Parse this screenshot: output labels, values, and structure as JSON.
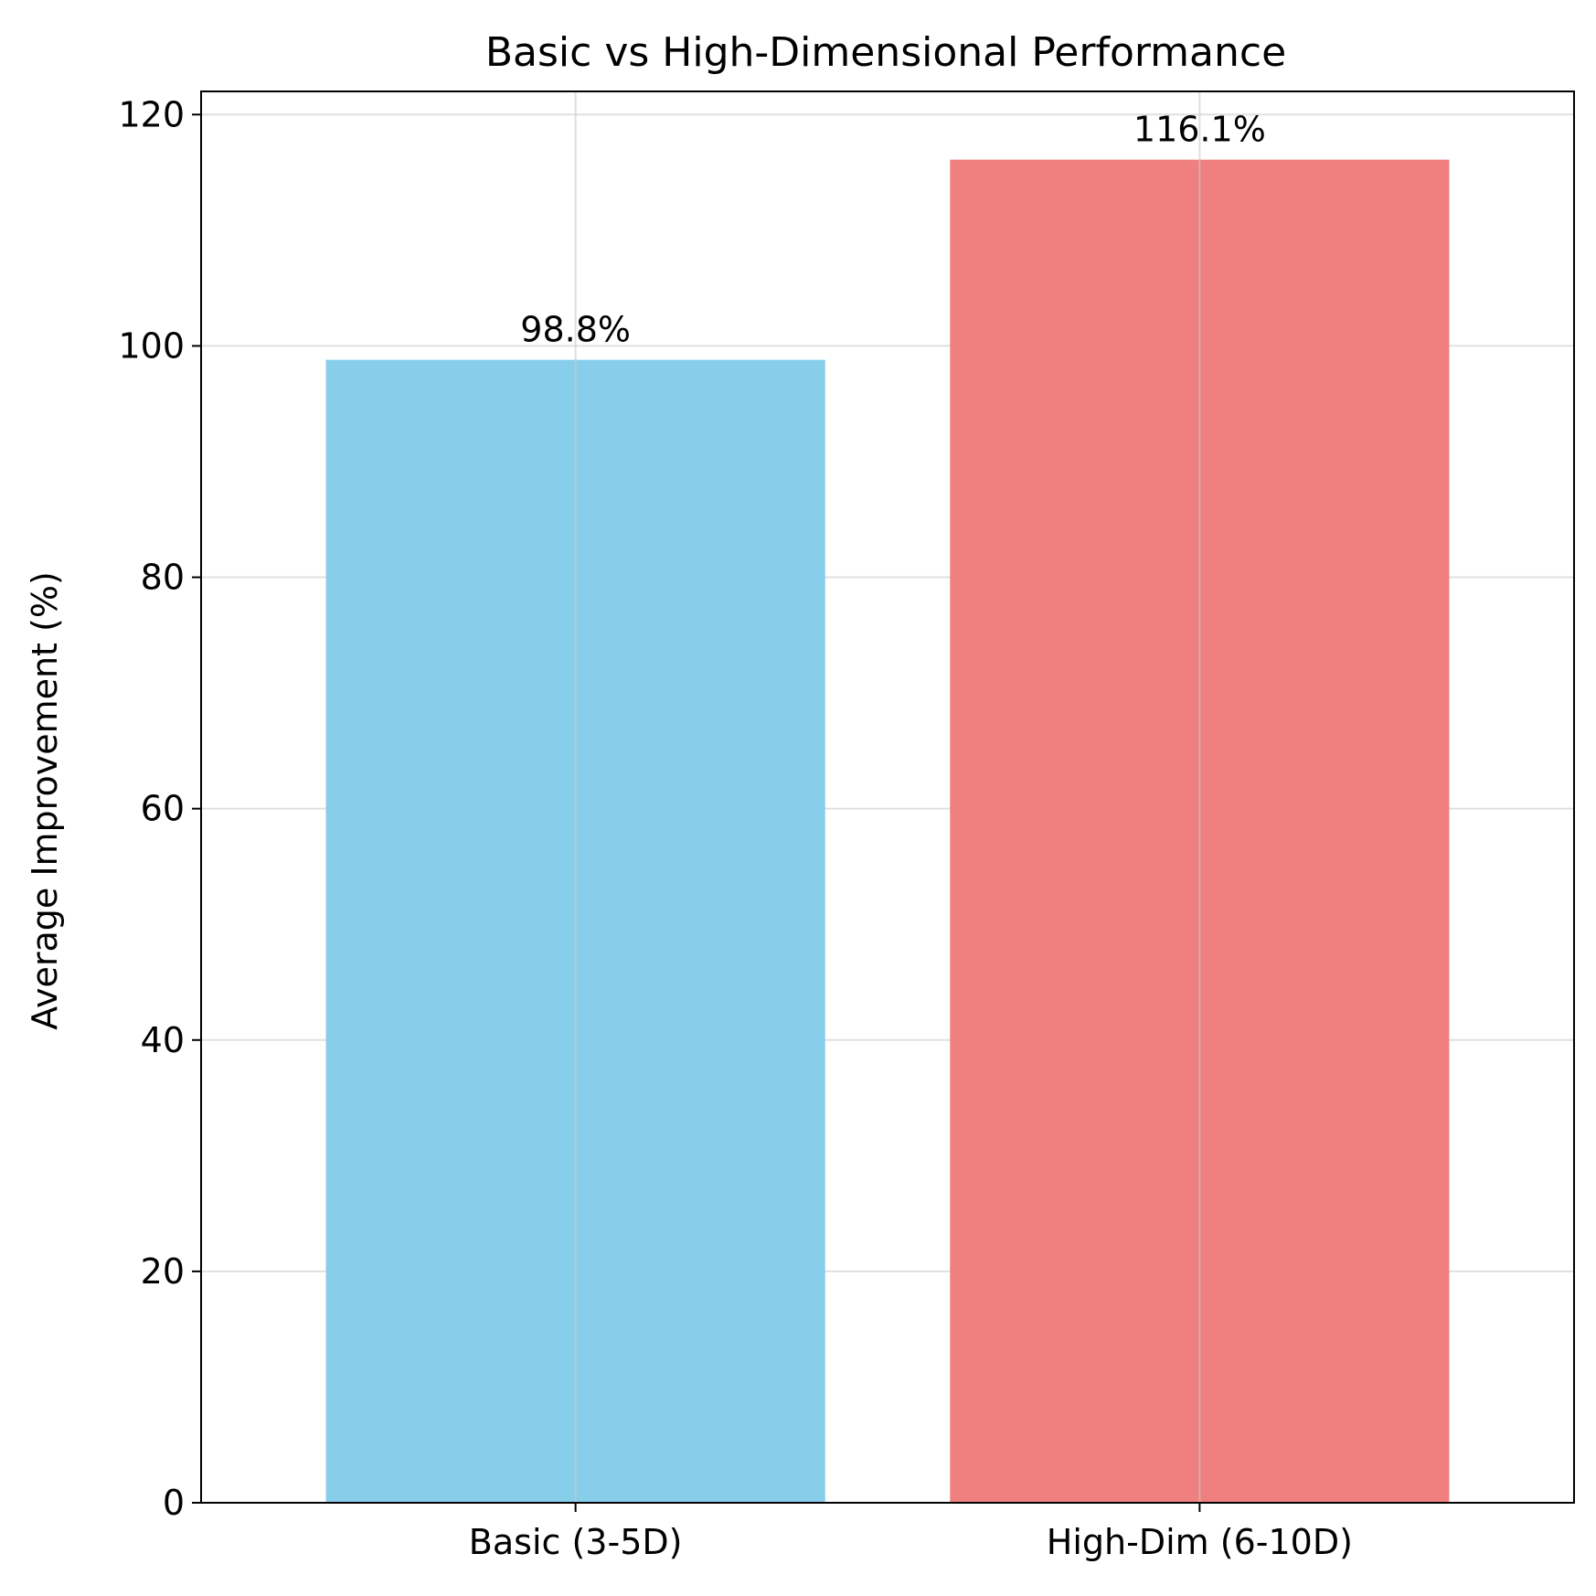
{
  "chart_data": {
    "type": "bar",
    "title": "Basic vs High-Dimensional Performance",
    "xlabel": "",
    "ylabel": "Average Improvement (%)",
    "categories": [
      "Basic (3-5D)",
      "High-Dim (6-10D)"
    ],
    "values": [
      98.8,
      116.1
    ],
    "data_labels": [
      "98.8%",
      "116.1%"
    ],
    "colors": [
      "#87ceeb",
      "#f08080"
    ],
    "ylim": [
      0,
      122
    ],
    "yticks": [
      0,
      20,
      40,
      60,
      80,
      100,
      120
    ],
    "grid": true,
    "legend": "none"
  }
}
